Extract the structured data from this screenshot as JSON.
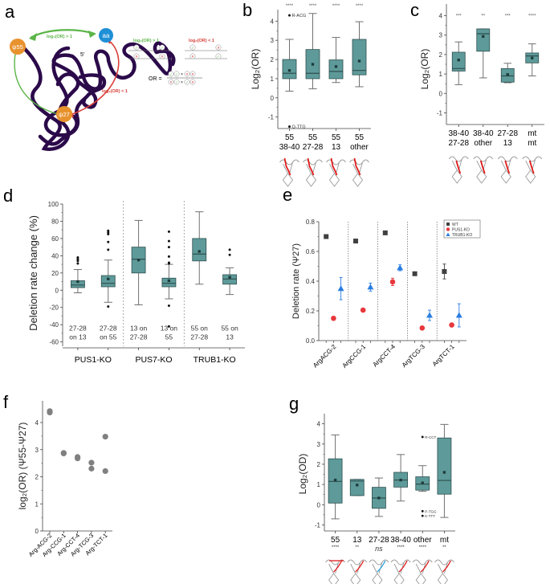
{
  "panel_labels": {
    "a": "a",
    "b": "b",
    "c": "c",
    "d": "d",
    "e": "e",
    "f": "f",
    "g": "g"
  },
  "colors": {
    "box_fill": "#5e9a9a",
    "box_stroke": "#2f4f4f",
    "whisker": "#707070",
    "wt": "#404040",
    "pus1": "#e8383d",
    "trub1": "#2a7de1",
    "scatter_f": "#808080",
    "rna_strand": "#2b0a4a",
    "node_orange": "#e8922e",
    "node_blue": "#1f8fd6",
    "green": "#5bb548",
    "red": "#d8403b"
  },
  "panel_a": {
    "nodes": {
      "psi55": "ψ55",
      "aa": "aa",
      "psi27": "ψ27"
    },
    "five_prime": "5'",
    "green_label": "log₂(OR) > 1",
    "red_label": "log₂(OR) < 1",
    "legend_green_title": "log₂(OR) > 1",
    "legend_red_title": "log₂(OR) < 1",
    "or_label": "OR =",
    "times": "×"
  },
  "chart_data": [
    {
      "id": "b",
      "type": "box",
      "ylabel": "Log2(OR)",
      "ylim": [
        -1.6,
        4.6
      ],
      "yticks": [
        -1,
        0,
        1,
        2,
        3,
        4
      ],
      "categories": [
        [
          "55",
          "38-40"
        ],
        [
          "55",
          "27-28"
        ],
        [
          "55",
          "13"
        ],
        [
          "55",
          "other"
        ]
      ],
      "significance": [
        "****",
        "****",
        "****",
        "****"
      ],
      "boxes": [
        {
          "q1": 1.0,
          "median": 1.28,
          "q3": 2.0,
          "mean": 1.43,
          "whislo": 0.35,
          "whishi": 3.05
        },
        {
          "q1": 1.0,
          "median": 1.28,
          "q3": 2.52,
          "mean": 1.75,
          "whislo": 0.47,
          "whishi": 4.4
        },
        {
          "q1": 1.0,
          "median": 1.38,
          "q3": 1.98,
          "mean": 1.63,
          "whislo": 0.8,
          "whishi": 3.15
        },
        {
          "q1": 1.2,
          "median": 1.43,
          "q3": 3.05,
          "mean": 1.92,
          "whislo": 0.58,
          "whishi": 3.97
        }
      ],
      "outliers": [
        {
          "cat": 0,
          "value": 4.3,
          "label": "R-ACG"
        },
        {
          "cat": 0,
          "value": -1.5,
          "label": "Q-TTG"
        }
      ]
    },
    {
      "id": "c",
      "type": "box",
      "ylabel": "Log2(OR)",
      "ylim": [
        -1.6,
        4.6
      ],
      "yticks": [
        -1,
        0,
        1,
        2,
        3,
        4
      ],
      "categories": [
        [
          "38-40",
          "27-28"
        ],
        [
          "38-40",
          "other"
        ],
        [
          "27-28",
          "13"
        ],
        [
          "mt",
          "mt"
        ]
      ],
      "significance": [
        "***",
        "**",
        "***",
        "****"
      ],
      "boxes": [
        {
          "q1": 1.15,
          "median": 1.28,
          "q3": 2.12,
          "mean": 1.72,
          "whislo": 0.45,
          "whishi": 2.65
        },
        {
          "q1": 2.17,
          "median": 3.07,
          "q3": 3.32,
          "mean": 2.93,
          "whislo": 0.8,
          "whishi": 3.32
        },
        {
          "q1": 0.58,
          "median": 0.9,
          "q3": 1.28,
          "mean": 0.97,
          "whislo": 0.55,
          "whishi": 1.55
        },
        {
          "q1": 1.57,
          "median": 1.93,
          "q3": 2.08,
          "mean": 1.82,
          "whislo": 0.9,
          "whishi": 2.55
        }
      ],
      "outliers": []
    },
    {
      "id": "d",
      "type": "box",
      "ylabel": "Deletion rate change (%)",
      "ylim": [
        -65,
        100
      ],
      "yticks": [
        -60,
        -40,
        -20,
        0,
        20,
        40,
        60,
        80,
        100
      ],
      "groups": [
        "PUS1-KO",
        "PUS7-KO",
        "TRUB1-KO"
      ],
      "categories": [
        [
          "27-28",
          "on 13"
        ],
        [
          "27-28",
          "on 55"
        ],
        [
          "13 on",
          "27-28"
        ],
        [
          "13 on",
          "55"
        ],
        [
          "55 on",
          "27-28"
        ],
        [
          "55 on",
          "13"
        ]
      ],
      "boxes": [
        {
          "q1": 3,
          "median": 6,
          "q3": 11,
          "mean": 10,
          "whislo": -3,
          "whishi": 24
        },
        {
          "q1": 4,
          "median": 8,
          "q3": 17,
          "mean": 13,
          "whislo": -14,
          "whishi": 35
        },
        {
          "q1": 20,
          "median": 36,
          "q3": 50,
          "mean": 35,
          "whislo": -17,
          "whishi": 81
        },
        {
          "q1": 4,
          "median": 8,
          "q3": 14,
          "mean": 11,
          "whislo": -10,
          "whishi": 30
        },
        {
          "q1": 34,
          "median": 42,
          "q3": 60,
          "mean": 45,
          "whislo": 7,
          "whishi": 91
        },
        {
          "q1": 7,
          "median": 13,
          "q3": 18,
          "mean": 15,
          "whislo": -5,
          "whishi": 26
        }
      ],
      "outliers": [
        {
          "cat": 0,
          "values": [
            31,
            34,
            36,
            38
          ]
        },
        {
          "cat": 1,
          "values": [
            47,
            56,
            65,
            67,
            69,
            -19
          ]
        },
        {
          "cat": 3,
          "values": [
            31,
            32,
            39,
            50,
            57,
            68,
            -18,
            -42
          ]
        },
        {
          "cat": 5,
          "values": [
            41,
            47
          ]
        }
      ]
    },
    {
      "id": "e",
      "type": "scatter",
      "ylabel": "Deletion rate (Ψ27)",
      "ylim": [
        0.0,
        0.8
      ],
      "yticks": [
        0.0,
        0.2,
        0.4,
        0.6,
        0.8
      ],
      "categories": [
        "ArgACG-2",
        "ArgCCG-1",
        "ArgCCT-4",
        "ArgTCG-3",
        "ArgTCT-1"
      ],
      "legend_position": "top-right",
      "series": [
        {
          "name": "WT",
          "marker": "square",
          "values": [
            0.7,
            0.67,
            0.725,
            0.45,
            0.465
          ],
          "errors": [
            0,
            0,
            0,
            0,
            0.05
          ]
        },
        {
          "name": "PUS1-KO",
          "marker": "circle",
          "values": [
            0.15,
            0.205,
            0.395,
            0.085,
            0.105
          ],
          "errors": [
            0,
            0,
            0.025,
            0,
            0
          ]
        },
        {
          "name": "TRUB1-KO",
          "marker": "triangle",
          "values": [
            0.35,
            0.36,
            0.49,
            0.17,
            0.17
          ],
          "errors": [
            0.075,
            0.027,
            0.02,
            0.035,
            0.078
          ]
        }
      ]
    },
    {
      "id": "f",
      "type": "scatter",
      "ylabel": "log2(OR) (Ψ55-Ψ27)",
      "ylim": [
        0,
        4.8
      ],
      "yticks": [
        0,
        1,
        2,
        3,
        4
      ],
      "categories": [
        "Arg-ACG-2",
        "Arg-CCG-1",
        "Arg-CCT-4",
        "Arg-TCG-3",
        "Arg-TCT-1"
      ],
      "points": [
        {
          "cat": 0,
          "value": 4.42
        },
        {
          "cat": 0,
          "value": 4.37
        },
        {
          "cat": 1,
          "value": 2.88
        },
        {
          "cat": 1,
          "value": 2.86
        },
        {
          "cat": 2,
          "value": 2.73
        },
        {
          "cat": 2,
          "value": 2.68
        },
        {
          "cat": 3,
          "value": 2.52
        },
        {
          "cat": 3,
          "value": 2.3
        },
        {
          "cat": 4,
          "value": 3.48
        },
        {
          "cat": 4,
          "value": 2.21
        }
      ]
    },
    {
      "id": "g",
      "type": "box",
      "ylabel": "Log2(OD)",
      "ylim": [
        -1.3,
        4.5
      ],
      "yticks": [
        -1,
        0,
        1,
        2,
        3,
        4
      ],
      "categories": [
        "55",
        "13",
        "27-28",
        "38-40",
        "other",
        "mt"
      ],
      "significance": [
        "****",
        "**",
        "ns",
        "****",
        "****",
        "**"
      ],
      "boxes": [
        {
          "q1": 0.08,
          "median": 1.15,
          "q3": 2.27,
          "mean": 1.22,
          "whislo": -0.7,
          "whishi": 3.45
        },
        {
          "q1": 0.45,
          "median": 1.17,
          "q3": 1.25,
          "mean": 0.97,
          "whislo": 0.45,
          "whishi": 1.25
        },
        {
          "q1": -0.18,
          "median": 0.33,
          "q3": 0.86,
          "mean": 0.33,
          "whislo": -0.58,
          "whishi": 1.32
        },
        {
          "q1": 0.87,
          "median": 1.22,
          "q3": 1.6,
          "mean": 1.22,
          "whislo": 0.18,
          "whishi": 2.48
        },
        {
          "q1": 0.72,
          "median": 1.02,
          "q3": 1.38,
          "mean": 1.08,
          "whislo": 0.66,
          "whishi": 1.93
        },
        {
          "q1": 0.52,
          "median": 1.2,
          "q3": 3.3,
          "mean": 1.6,
          "whislo": -0.63,
          "whishi": 3.97
        }
      ],
      "outliers": [
        {
          "cat": 4,
          "value": 3.35,
          "label": "R-CCT"
        },
        {
          "cat": 4,
          "value": -0.32,
          "label": "P-TGG"
        },
        {
          "cat": 4,
          "value": -0.55,
          "label": "K-TTT"
        }
      ]
    }
  ]
}
